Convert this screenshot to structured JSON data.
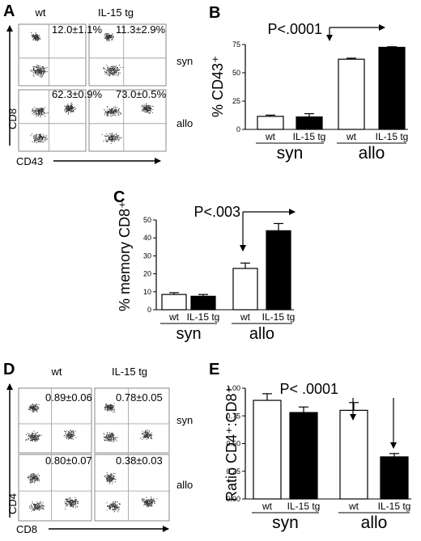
{
  "panel_A": {
    "letter": "A",
    "col_labels": [
      "wt",
      "IL-15 tg"
    ],
    "row_labels": [
      "syn",
      "allo"
    ],
    "stats": [
      "12.0±1.1%",
      "11.3±2.9%",
      "62.3±0.9%",
      "73.0±0.5%"
    ],
    "y_axis": "CD8",
    "x_axis": "CD43"
  },
  "panel_D": {
    "letter": "D",
    "col_labels": [
      "wt",
      "IL-15 tg"
    ],
    "row_labels": [
      "syn",
      "allo"
    ],
    "stats": [
      "0.89±0.06",
      "0.78±0.05",
      "0.80±0.07",
      "0.38±0.03"
    ],
    "y_axis": "CD4",
    "x_axis": "CD8"
  },
  "chart_data": [
    {
      "panel": "B",
      "type": "bar",
      "categories": [
        "wt",
        "IL-15 tg",
        "wt",
        "IL-15 tg"
      ],
      "groups": [
        "syn",
        "allo"
      ],
      "values": [
        11.5,
        11,
        62,
        72.5
      ],
      "errors": [
        1.1,
        2.9,
        0.9,
        0.5
      ],
      "fills": [
        "#ffffff",
        "#000000",
        "#ffffff",
        "#000000"
      ],
      "ylabel": "% CD43⁺",
      "ylim": [
        0,
        75
      ],
      "yticks": [
        "0",
        "25",
        "50",
        "75"
      ],
      "annotation": "P<.0001"
    },
    {
      "panel": "C",
      "type": "bar",
      "categories": [
        "wt",
        "IL-15 tg",
        "wt",
        "IL-15 tg"
      ],
      "groups": [
        "syn",
        "allo"
      ],
      "values": [
        8.5,
        7.5,
        23,
        44
      ],
      "errors": [
        1,
        1,
        3,
        4
      ],
      "fills": [
        "#ffffff",
        "#000000",
        "#ffffff",
        "#000000"
      ],
      "ylabel": "% memory CD8⁺",
      "ylim": [
        0,
        50
      ],
      "yticks": [
        "0",
        "10",
        "20",
        "30",
        "40",
        "50"
      ],
      "annotation": "P<.003"
    },
    {
      "panel": "E",
      "type": "bar",
      "categories": [
        "wt",
        "IL-15 tg",
        "wt",
        "IL-15 tg"
      ],
      "groups": [
        "syn",
        "allo"
      ],
      "values": [
        0.89,
        0.78,
        0.8,
        0.38
      ],
      "errors": [
        0.06,
        0.05,
        0.07,
        0.03
      ],
      "fills": [
        "#ffffff",
        "#000000",
        "#ffffff",
        "#000000"
      ],
      "ylabel": "Ratio CD4⁺:CD8⁺",
      "ylim": [
        0,
        1.0
      ],
      "yticks": [
        "0.00",
        "0.25",
        "0.50",
        "0.75",
        "1.00"
      ],
      "annotation": "P< .0001"
    }
  ]
}
